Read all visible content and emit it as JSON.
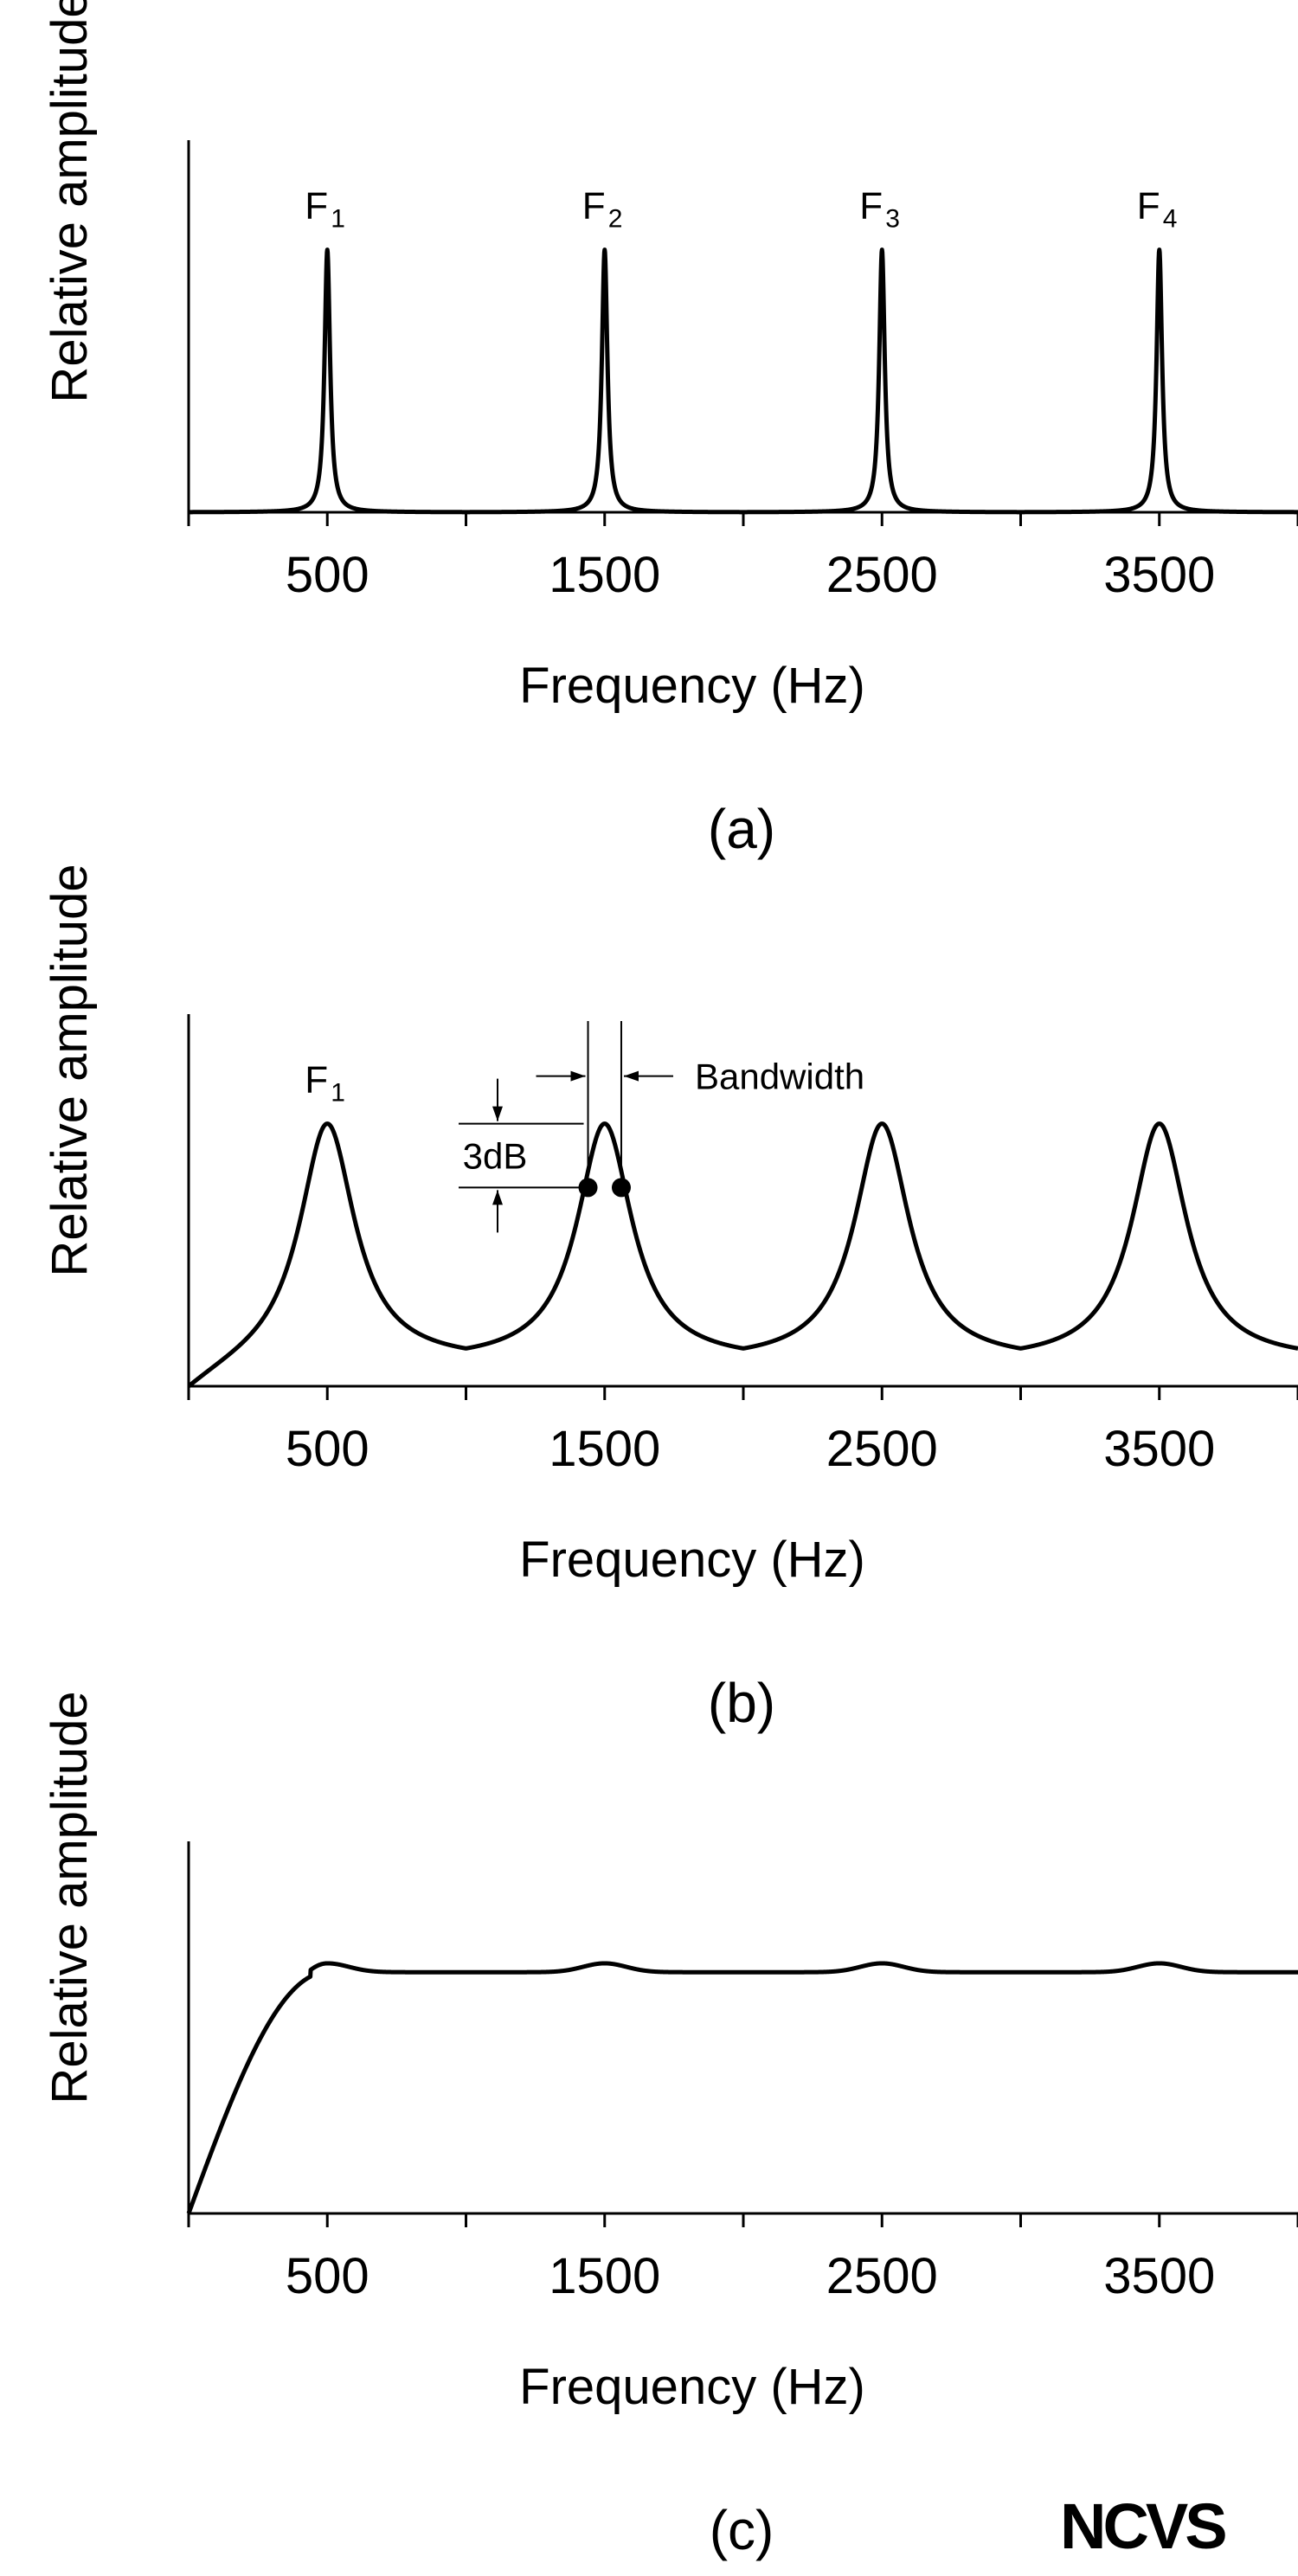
{
  "colors": {
    "line": "#000000",
    "background": "#ffffff"
  },
  "logo": "NCVS",
  "chart_data": [
    {
      "type": "line",
      "panel_label": "(a)",
      "xlabel": "Frequency (Hz)",
      "ylabel": "Relative amplitude",
      "xlim": [
        0,
        4000
      ],
      "ylim": [
        0,
        1
      ],
      "x_ticks": [
        0,
        500,
        1000,
        1500,
        2000,
        2500,
        3000,
        3500,
        4000
      ],
      "x_tick_labels": [
        "500",
        "1500",
        "2500",
        "3500"
      ],
      "x_tick_label_values": [
        500,
        1500,
        2500,
        3500
      ],
      "grid": false,
      "y_ticks": false,
      "series": [
        {
          "model": "narrow-resonances",
          "formant_frequencies": [
            500,
            1500,
            2500,
            3500
          ],
          "bandwidth": 12,
          "peak_level": 0.74,
          "floor": 0.0
        }
      ],
      "peak_labels": [
        {
          "base": "F",
          "sub": "1",
          "x": 500
        },
        {
          "base": "F",
          "sub": "2",
          "x": 1500
        },
        {
          "base": "F",
          "sub": "3",
          "x": 2500
        },
        {
          "base": "F",
          "sub": "4",
          "x": 3500
        }
      ]
    },
    {
      "type": "line",
      "panel_label": "(b)",
      "xlabel": "Frequency (Hz)",
      "ylabel": "Relative amplitude",
      "xlim": [
        0,
        4000
      ],
      "ylim": [
        0,
        1
      ],
      "x_ticks": [
        0,
        500,
        1000,
        1500,
        2000,
        2500,
        3000,
        3500,
        4000
      ],
      "x_tick_labels": [
        "500",
        "1500",
        "2500",
        "3500"
      ],
      "x_tick_label_values": [
        500,
        1500,
        2500,
        3500
      ],
      "grid": false,
      "y_ticks": false,
      "series": [
        {
          "model": "broad-resonances",
          "formant_frequencies": [
            500,
            1500,
            2500,
            3500
          ],
          "bandwidth": 120,
          "peak_level": 0.74,
          "floor": 0.07
        }
      ],
      "peak_labels": [
        {
          "base": "F",
          "sub": "1",
          "x": 500
        }
      ],
      "annotations": {
        "bandwidth_label": "Bandwidth",
        "level_label": "3dB",
        "half_power_points": [
          1440,
          1560
        ],
        "half_power_level": 0.56
      }
    },
    {
      "type": "line",
      "panel_label": "(c)",
      "xlabel": "Frequency (Hz)",
      "ylabel": "Relative amplitude",
      "xlim": [
        0,
        4000
      ],
      "ylim": [
        0,
        1
      ],
      "x_ticks": [
        0,
        500,
        1000,
        1500,
        2000,
        2500,
        3000,
        3500,
        4000
      ],
      "x_tick_labels": [
        "500",
        "1500",
        "2500",
        "3500"
      ],
      "x_tick_label_values": [
        500,
        1500,
        2500,
        3500
      ],
      "grid": false,
      "y_ticks": false,
      "series": [
        {
          "model": "flat-spectrum",
          "rise_to": 500,
          "flat_level": 0.68,
          "ripple": 0.025,
          "formant_frequencies": [
            500,
            1500,
            2500,
            3500
          ]
        }
      ]
    }
  ]
}
